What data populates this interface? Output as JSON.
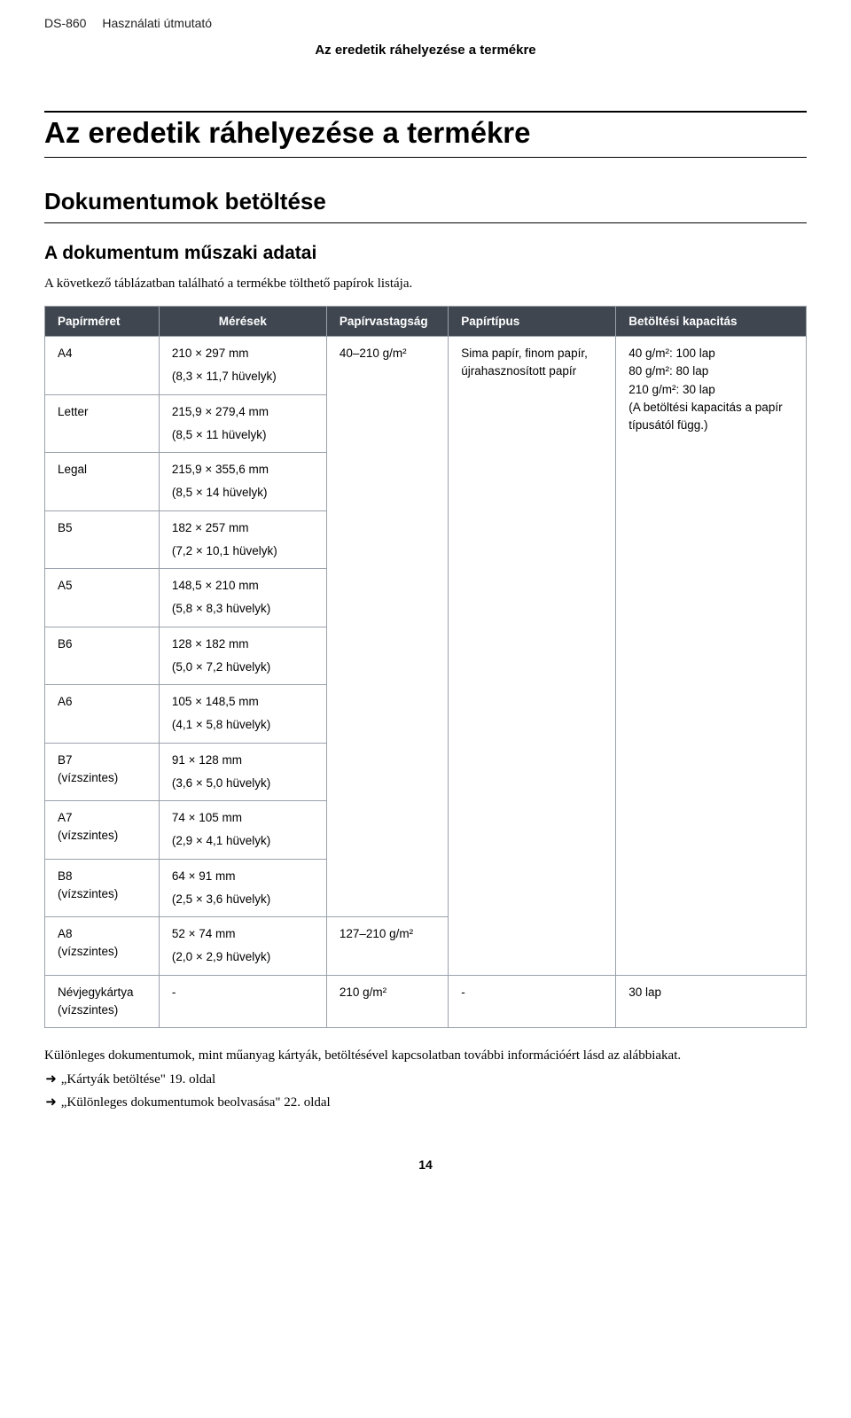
{
  "header": {
    "product": "DS-860",
    "manual": "Használati útmutató",
    "section_subtitle": "Az eredetik ráhelyezése a termékre"
  },
  "title": "Az eredetik ráhelyezése a termékre",
  "h2": "Dokumentumok betöltése",
  "h3": "A dokumentum műszaki adatai",
  "intro": "A következő táblázatban található a termékbe tölthető papírok listája.",
  "table": {
    "columns": [
      "Papírméret",
      "Mérések",
      "Papírvastagság",
      "Papírtípus",
      "Betöltési kapacitás"
    ],
    "rows": [
      {
        "size": "A4",
        "size_note": "",
        "m1": "210 × 297 mm",
        "m2": "(8,3 × 11,7 hüvelyk)"
      },
      {
        "size": "Letter",
        "size_note": "",
        "m1": "215,9 × 279,4 mm",
        "m2": "(8,5 × 11 hüvelyk)"
      },
      {
        "size": "Legal",
        "size_note": "",
        "m1": "215,9 × 355,6 mm",
        "m2": "(8,5 × 14 hüvelyk)"
      },
      {
        "size": "B5",
        "size_note": "",
        "m1": "182 × 257 mm",
        "m2": "(7,2 × 10,1 hüvelyk)"
      },
      {
        "size": "A5",
        "size_note": "",
        "m1": "148,5 × 210 mm",
        "m2": "(5,8 × 8,3 hüvelyk)"
      },
      {
        "size": "B6",
        "size_note": "",
        "m1": "128 × 182 mm",
        "m2": "(5,0 × 7,2 hüvelyk)"
      },
      {
        "size": "A6",
        "size_note": "",
        "m1": "105 × 148,5 mm",
        "m2": "(4,1 × 5,8 hüvelyk)"
      },
      {
        "size": "B7",
        "size_note": "(vízszintes)",
        "m1": "91 × 128 mm",
        "m2": "(3,6 × 5,0 hüvelyk)"
      },
      {
        "size": "A7",
        "size_note": "(vízszintes)",
        "m1": "74 × 105 mm",
        "m2": "(2,9 × 4,1 hüvelyk)"
      },
      {
        "size": "B8",
        "size_note": "(vízszintes)",
        "m1": "64 × 91 mm",
        "m2": "(2,5 × 3,6 hüvelyk)"
      },
      {
        "size": "A8",
        "size_note": "(vízszintes)",
        "m1": "52 × 74 mm",
        "m2": "(2,0 × 2,9 hüvelyk)"
      }
    ],
    "group1": {
      "thickness": "40–210 g/m²",
      "ptype": "Sima papír, finom papír, újrahasznosított papír",
      "capacity": "40 g/m²: 100 lap\n80 g/m²: 80 lap\n210 g/m²: 30 lap\n(A betöltési kapacitás a papír típusától függ.)"
    },
    "a8_thickness": "127–210 g/m²",
    "last_row": {
      "size": "Névjegykártya",
      "size_note": "(vízszintes)",
      "meas": "-",
      "thickness": "210 g/m²",
      "ptype": "-",
      "capacity": "30 lap"
    }
  },
  "notes": {
    "text": "Különleges dokumentumok, mint műanyag kártyák, betöltésével kapcsolatban további információért lásd az alábbiakat.",
    "links": [
      "„Kártyák betöltése\" 19. oldal",
      "„Különleges dokumentumok beolvasása\" 22. oldal"
    ]
  },
  "page_number": "14",
  "glyphs": {
    "arrow": "➜"
  }
}
